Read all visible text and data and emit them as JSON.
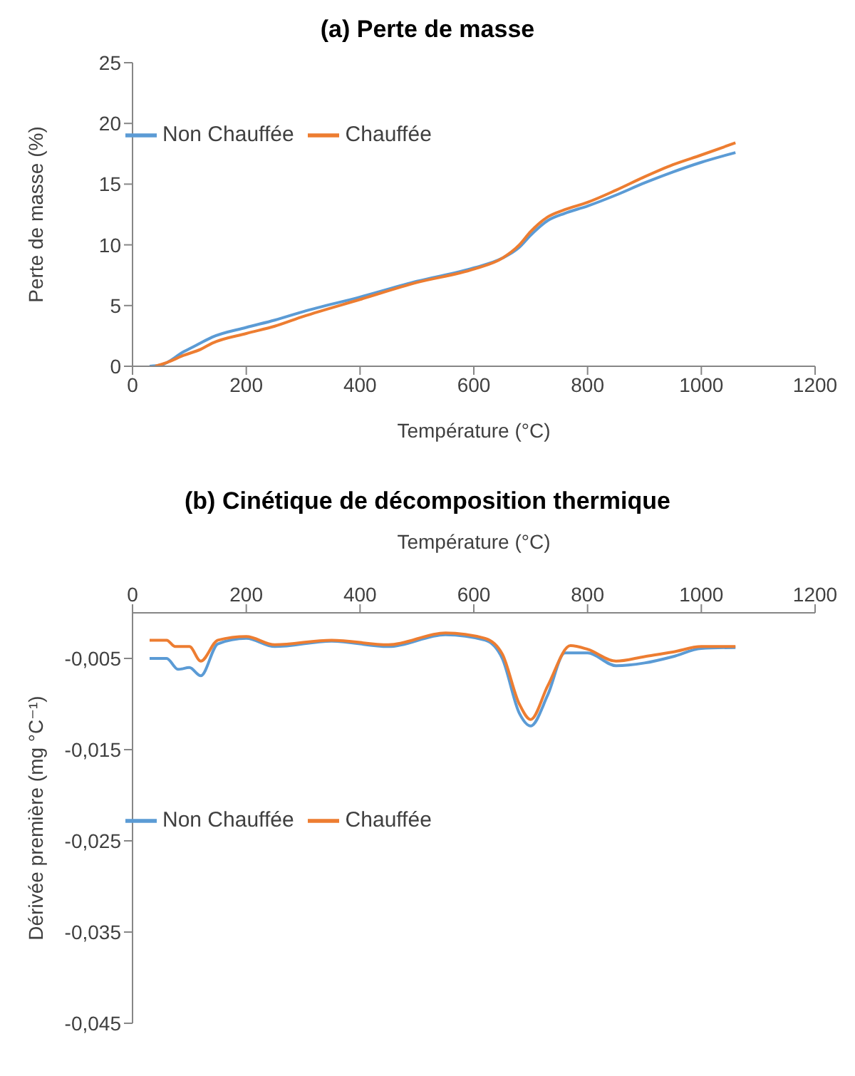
{
  "chart_data": [
    {
      "type": "line",
      "title": "(a) Perte de masse",
      "xlabel": "Température  (°C)",
      "ylabel": "Perte de masse (%)",
      "xlim": [
        0,
        1200
      ],
      "xticks": [
        0,
        200,
        400,
        600,
        800,
        1000,
        1200
      ],
      "ylim": [
        0,
        25
      ],
      "yticks": [
        0,
        5,
        10,
        15,
        20,
        25
      ],
      "grid": false,
      "legend": "top left",
      "marker": "none",
      "series": [
        {
          "name": "Non Chauffée",
          "color": "#5b9bd5",
          "x": [
            30,
            50,
            90,
            115,
            140,
            200,
            250,
            300,
            400,
            500,
            600,
            650,
            680,
            700,
            730,
            760,
            800,
            850,
            900,
            950,
            1000,
            1060
          ],
          "values": [
            0,
            0.1,
            1.2,
            1.8,
            2.4,
            3.2,
            3.8,
            4.5,
            5.7,
            7.0,
            8.1,
            8.9,
            9.8,
            10.8,
            12.0,
            12.6,
            13.2,
            14.1,
            15.1,
            16.0,
            16.8,
            17.6
          ]
        },
        {
          "name": "Chauffée",
          "color": "#ed7d31",
          "x": [
            40,
            60,
            90,
            120,
            140,
            200,
            250,
            300,
            400,
            500,
            600,
            650,
            680,
            700,
            730,
            760,
            800,
            850,
            900,
            950,
            1000,
            1060
          ],
          "values": [
            0,
            0.3,
            0.9,
            1.4,
            1.9,
            2.7,
            3.3,
            4.1,
            5.5,
            6.9,
            8.0,
            8.9,
            10.0,
            11.1,
            12.3,
            12.9,
            13.5,
            14.5,
            15.6,
            16.6,
            17.4,
            18.4
          ]
        }
      ]
    },
    {
      "type": "line",
      "title": "(b) Cinétique de décomposition thermique",
      "xlabel": "Température  (°C)",
      "ylabel": "Dérivée première (mg °C⁻¹)",
      "xlim": [
        0,
        1200
      ],
      "xticks": [
        0,
        200,
        400,
        600,
        800,
        1000,
        1200
      ],
      "ylim": [
        -0.045,
        0
      ],
      "yticks": [
        {
          "value": -0.045,
          "label": "-0,045"
        },
        {
          "value": -0.035,
          "label": "-0,035"
        },
        {
          "value": -0.025,
          "label": "-0,025"
        },
        {
          "value": -0.015,
          "label": "-0,015"
        },
        {
          "value": -0.005,
          "label": "-0,005"
        }
      ],
      "grid": false,
      "legend": "left",
      "marker": "none",
      "series": [
        {
          "name": "Non Chauffée",
          "color": "#5b9bd5",
          "x": [
            30,
            60,
            80,
            100,
            120,
            150,
            200,
            250,
            350,
            450,
            550,
            620,
            650,
            680,
            700,
            730,
            760,
            800,
            850,
            900,
            950,
            1000,
            1060
          ],
          "values": [
            -0.005,
            -0.005,
            -0.0062,
            -0.006,
            -0.0069,
            -0.0034,
            -0.0028,
            -0.0037,
            -0.0031,
            -0.0037,
            -0.0024,
            -0.003,
            -0.005,
            -0.011,
            -0.0124,
            -0.009,
            -0.0044,
            -0.0044,
            -0.0058,
            -0.0055,
            -0.0048,
            -0.0039,
            -0.0038
          ]
        },
        {
          "name": "Chauffée",
          "color": "#ed7d31",
          "x": [
            30,
            60,
            75,
            100,
            120,
            150,
            200,
            250,
            350,
            450,
            550,
            620,
            650,
            680,
            700,
            730,
            770,
            800,
            850,
            900,
            950,
            1000,
            1060
          ],
          "values": [
            -0.003,
            -0.003,
            -0.0037,
            -0.0037,
            -0.0053,
            -0.003,
            -0.0026,
            -0.0035,
            -0.003,
            -0.0035,
            -0.0022,
            -0.0028,
            -0.0045,
            -0.01,
            -0.0117,
            -0.008,
            -0.0036,
            -0.004,
            -0.0053,
            -0.0048,
            -0.0043,
            -0.0037,
            -0.0037
          ]
        }
      ]
    }
  ]
}
